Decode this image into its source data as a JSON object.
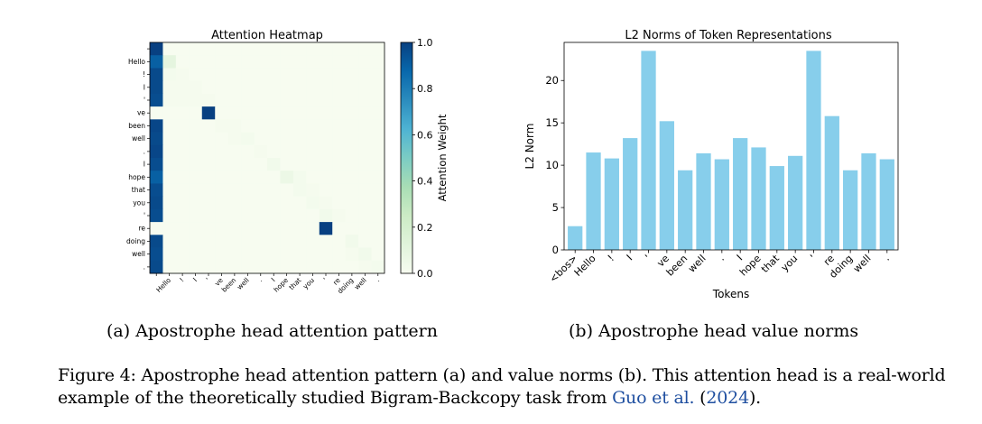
{
  "chart_data": [
    {
      "type": "heatmap",
      "title": "Attention Heatmap",
      "ylabel_tokens": [
        "",
        "Hello",
        "!",
        "I",
        "'",
        "ve",
        "been",
        "well",
        ".",
        "I",
        "hope",
        "that",
        "you",
        "'",
        "re",
        "doing",
        "well",
        "."
      ],
      "xlabel_tokens": [
        "",
        "Hello",
        "!",
        "I",
        "'",
        "ve",
        "been",
        "well",
        ".",
        "I",
        "hope",
        "that",
        "you",
        "'",
        "re",
        "doing",
        "well",
        "."
      ],
      "colorbar_label": "Attention Weight",
      "colorbar_ticks": [
        "0.0",
        "0.2",
        "0.4",
        "0.6",
        "0.8",
        "1.0"
      ],
      "vmin": 0.0,
      "vmax": 1.0,
      "matrix": [
        [
          1.0,
          0,
          0,
          0,
          0,
          0,
          0,
          0,
          0,
          0,
          0,
          0,
          0,
          0,
          0,
          0,
          0,
          0
        ],
        [
          0.9,
          0.1,
          0,
          0,
          0,
          0,
          0,
          0,
          0,
          0,
          0,
          0,
          0,
          0,
          0,
          0,
          0,
          0
        ],
        [
          0.97,
          0.02,
          0.01,
          0,
          0,
          0,
          0,
          0,
          0,
          0,
          0,
          0,
          0,
          0,
          0,
          0,
          0,
          0
        ],
        [
          0.97,
          0.01,
          0.01,
          0.01,
          0,
          0,
          0,
          0,
          0,
          0,
          0,
          0,
          0,
          0,
          0,
          0,
          0,
          0
        ],
        [
          0.96,
          0.01,
          0.01,
          0.01,
          0.01,
          0,
          0,
          0,
          0,
          0,
          0,
          0,
          0,
          0,
          0,
          0,
          0,
          0
        ],
        [
          0.0,
          0.0,
          0.0,
          0.0,
          1.0,
          0.0,
          0,
          0,
          0,
          0,
          0,
          0,
          0,
          0,
          0,
          0,
          0,
          0
        ],
        [
          0.98,
          0,
          0,
          0,
          0,
          0.01,
          0.01,
          0,
          0,
          0,
          0,
          0,
          0,
          0,
          0,
          0,
          0,
          0
        ],
        [
          0.97,
          0,
          0,
          0,
          0,
          0,
          0.01,
          0.02,
          0,
          0,
          0,
          0,
          0,
          0,
          0,
          0,
          0,
          0
        ],
        [
          0.98,
          0,
          0,
          0,
          0,
          0,
          0,
          0,
          0.01,
          0,
          0,
          0,
          0,
          0,
          0,
          0,
          0,
          0
        ],
        [
          0.96,
          0,
          0,
          0,
          0,
          0,
          0,
          0,
          0,
          0.03,
          0,
          0,
          0,
          0,
          0,
          0,
          0,
          0
        ],
        [
          0.9,
          0,
          0,
          0,
          0,
          0,
          0,
          0,
          0,
          0,
          0.06,
          0.02,
          0,
          0,
          0,
          0,
          0,
          0
        ],
        [
          0.96,
          0,
          0,
          0,
          0,
          0,
          0,
          0,
          0,
          0,
          0,
          0.02,
          0.01,
          0,
          0,
          0,
          0,
          0
        ],
        [
          0.97,
          0,
          0,
          0,
          0,
          0,
          0,
          0,
          0,
          0,
          0,
          0,
          0.02,
          0.01,
          0,
          0,
          0,
          0
        ],
        [
          0.96,
          0,
          0,
          0,
          0,
          0,
          0,
          0,
          0,
          0,
          0,
          0,
          0,
          0.03,
          0.01,
          0,
          0,
          0
        ],
        [
          0.0,
          0,
          0,
          0,
          0,
          0,
          0,
          0,
          0,
          0,
          0,
          0,
          0,
          1.0,
          0.0,
          0,
          0,
          0
        ],
        [
          0.97,
          0,
          0,
          0,
          0,
          0,
          0,
          0,
          0,
          0,
          0,
          0,
          0,
          0,
          0,
          0.03,
          0,
          0
        ],
        [
          0.96,
          0,
          0,
          0,
          0,
          0,
          0,
          0,
          0,
          0,
          0,
          0,
          0,
          0,
          0,
          0.01,
          0.03,
          0
        ],
        [
          0.97,
          0,
          0,
          0,
          0,
          0,
          0,
          0,
          0,
          0,
          0,
          0,
          0,
          0,
          0,
          0,
          0.01,
          0.02
        ]
      ]
    },
    {
      "type": "bar",
      "title": "L2 Norms of Token Representations",
      "xlabel": "Tokens",
      "ylabel": "L2 Norm",
      "categories": [
        "<bos>",
        "Hello",
        "!",
        "I",
        "'",
        "ve",
        "been",
        "well",
        ".",
        "I",
        "hope",
        "that",
        "you",
        "'",
        "re",
        "doing",
        "well",
        "."
      ],
      "values": [
        2.8,
        11.5,
        10.8,
        13.2,
        23.5,
        15.2,
        9.4,
        11.4,
        10.7,
        13.2,
        12.1,
        9.9,
        11.1,
        23.5,
        15.8,
        9.4,
        11.4,
        10.7
      ],
      "ylim": [
        0,
        24.5
      ],
      "yticks": [
        "0",
        "5",
        "10",
        "15",
        "20"
      ],
      "bar_color": "#87ceeb"
    }
  ],
  "captions": {
    "a": "(a) Apostrophe head attention pattern",
    "b": "(b) Apostrophe head value norms"
  },
  "figure_caption": {
    "lead": "Figure 4: Apostrophe head attention pattern (a) and value norms (b). This attention head is a real-world example of the theoretically studied Bigram-Backcopy task from ",
    "cite_authors": "Guo et al.",
    "cite_open": " (",
    "cite_year": "2024",
    "cite_close": ")."
  }
}
